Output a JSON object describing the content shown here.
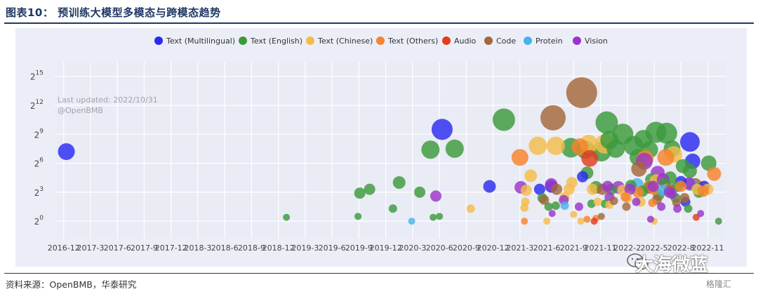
{
  "figure_title": "图表10： 预训练大模型多模态与跨模态趋势",
  "source_text": "资料来源：OpenBMB，华泰研究",
  "watermark_text": "大海微蓝",
  "badge_text": "格隆汇",
  "colors": {
    "header_rule": "#1f3864",
    "plot_background": "#e9ebf5",
    "grid": "#ffffff"
  },
  "chart_data": {
    "type": "scatter",
    "bubble": true,
    "title": "",
    "xlabel": "",
    "ylabel": "",
    "annotation": [
      "Last updated: 2022/10/31",
      "@OpenBMB"
    ],
    "y_scale": "log2",
    "ylim_exp": [
      -1.8,
      16.5
    ],
    "y_ticks": [
      {
        "base": "2",
        "exp": "0",
        "v": 0
      },
      {
        "base": "2",
        "exp": "3",
        "v": 3
      },
      {
        "base": "2",
        "exp": "6",
        "v": 6
      },
      {
        "base": "2",
        "exp": "9",
        "v": 9
      },
      {
        "base": "2",
        "exp": "12",
        "v": 12
      },
      {
        "base": "2",
        "exp": "15",
        "v": 15
      }
    ],
    "x_ticks": [
      "2016-12",
      "2017-3",
      "2017-6",
      "2017-9",
      "2017-12",
      "2018-3",
      "2018-6",
      "2018-9",
      "2018-12",
      "2019-3",
      "2019-6",
      "2019-9",
      "2019-12",
      "2020-3",
      "2020-6",
      "2020-9",
      "2020-12",
      "2021-3",
      "2021-6",
      "2021-9",
      "2021-11",
      "2022-2",
      "2022-5",
      "2022-8",
      "2022-11"
    ],
    "x_tick_positions": [
      0,
      3,
      6,
      9,
      12,
      15,
      18,
      21,
      24,
      27,
      30,
      33,
      36,
      39,
      42,
      45,
      48,
      51,
      54,
      57,
      60,
      63,
      66,
      69,
      72
    ],
    "legend_position": "top",
    "series": [
      {
        "name": "Text (Multilingual)",
        "color": "#2b2bf0",
        "points": [
          [
            0.3,
            7.2,
            12
          ],
          [
            42.3,
            9.5,
            15
          ],
          [
            47.6,
            3.6,
            9
          ],
          [
            53.2,
            3.3,
            8
          ],
          [
            54.5,
            3.6,
            9
          ],
          [
            58.0,
            4.6,
            8
          ],
          [
            70.0,
            8.2,
            14
          ],
          [
            70.3,
            6.2,
            11
          ],
          [
            69.0,
            4.1,
            8
          ],
          [
            69.5,
            2.0,
            7
          ],
          [
            71.6,
            3.6,
            8
          ]
        ]
      },
      {
        "name": "Text (English)",
        "color": "#3c9a3c",
        "points": [
          [
            24.9,
            0.4,
            5
          ],
          [
            32.9,
            0.5,
            5
          ],
          [
            33.1,
            2.9,
            8
          ],
          [
            34.2,
            3.3,
            8
          ],
          [
            36.8,
            1.3,
            6
          ],
          [
            37.5,
            4.0,
            9
          ],
          [
            39.8,
            3.0,
            8
          ],
          [
            41.3,
            0.4,
            5
          ],
          [
            42.0,
            0.5,
            5
          ],
          [
            41.0,
            7.4,
            13
          ],
          [
            43.7,
            7.5,
            13
          ],
          [
            49.2,
            10.5,
            16
          ],
          [
            53.5,
            2.4,
            7
          ],
          [
            54.2,
            1.5,
            6
          ],
          [
            55.0,
            1.6,
            6
          ],
          [
            56.7,
            7.6,
            14
          ],
          [
            58.3,
            7.4,
            13
          ],
          [
            58.5,
            5.0,
            9
          ],
          [
            59.0,
            1.8,
            6
          ],
          [
            60.1,
            7.2,
            14
          ],
          [
            60.7,
            10.2,
            16
          ],
          [
            61.0,
            8.4,
            13
          ],
          [
            61.7,
            7.5,
            13
          ],
          [
            62.5,
            9.0,
            15
          ],
          [
            63.7,
            7.8,
            14
          ],
          [
            64.2,
            6.6,
            12
          ],
          [
            64.8,
            8.5,
            13
          ],
          [
            65.5,
            7.4,
            12
          ],
          [
            66.2,
            9.2,
            15
          ],
          [
            67.4,
            9.1,
            15
          ],
          [
            68.0,
            7.5,
            12
          ],
          [
            67.8,
            4.5,
            9
          ],
          [
            68.6,
            3.6,
            8
          ],
          [
            69.2,
            5.7,
            10
          ],
          [
            70.0,
            5.2,
            10
          ],
          [
            71.0,
            3.0,
            8
          ],
          [
            72.1,
            6.0,
            11
          ],
          [
            73.2,
            0.0,
            5
          ],
          [
            59.5,
            3.5,
            9
          ],
          [
            61.2,
            3.3,
            8
          ],
          [
            63.4,
            3.7,
            8
          ],
          [
            64.7,
            3.1,
            8
          ],
          [
            65.7,
            4.3,
            9
          ],
          [
            66.5,
            2.7,
            8
          ],
          [
            67.2,
            3.9,
            8
          ],
          [
            68.4,
            2.4,
            7
          ],
          [
            69.8,
            1.3,
            6
          ],
          [
            60.5,
            1.8,
            6
          ]
        ]
      },
      {
        "name": "Text (Chinese)",
        "color": "#f5bc4a",
        "points": [
          [
            45.5,
            1.3,
            6
          ],
          [
            51.7,
            3.2,
            8
          ],
          [
            51.5,
            1.4,
            6
          ],
          [
            51.6,
            2.0,
            6
          ],
          [
            52.2,
            4.7,
            9
          ],
          [
            53.0,
            7.8,
            13
          ],
          [
            55.0,
            7.8,
            13
          ],
          [
            56.0,
            2.5,
            7
          ],
          [
            56.5,
            3.3,
            8
          ],
          [
            57.0,
            0.7,
            5
          ],
          [
            57.8,
            0.0,
            5
          ],
          [
            58.7,
            8.0,
            13
          ],
          [
            59.1,
            3.3,
            8
          ],
          [
            60.5,
            8.0,
            14
          ],
          [
            61.0,
            1.7,
            6
          ],
          [
            63.0,
            2.4,
            7
          ],
          [
            64.5,
            2.0,
            7
          ],
          [
            65.3,
            3.5,
            9
          ],
          [
            66.2,
            4.2,
            9
          ],
          [
            67.5,
            3.3,
            8
          ],
          [
            68.2,
            6.9,
            12
          ],
          [
            70.0,
            3.8,
            9
          ],
          [
            70.8,
            3.3,
            8
          ],
          [
            71.3,
            3.5,
            9
          ],
          [
            72.0,
            3.3,
            8
          ],
          [
            66.0,
            0.0,
            5
          ],
          [
            54.0,
            0.0,
            5
          ],
          [
            59.7,
            2.0,
            6
          ],
          [
            62.5,
            3.2,
            8
          ],
          [
            56.8,
            4.0,
            8
          ]
        ]
      },
      {
        "name": "Text (Others)",
        "color": "#f7832c",
        "points": [
          [
            51.0,
            6.6,
            12
          ],
          [
            57.7,
            7.7,
            12
          ],
          [
            58.5,
            0.2,
            5
          ],
          [
            59.5,
            0.3,
            5
          ],
          [
            62.8,
            2.5,
            7
          ],
          [
            64.2,
            3.0,
            8
          ],
          [
            65.0,
            6.5,
            12
          ],
          [
            66.0,
            3.3,
            8
          ],
          [
            67.3,
            6.6,
            12
          ],
          [
            69.0,
            3.6,
            8
          ],
          [
            71.5,
            3.1,
            8
          ],
          [
            72.7,
            4.9,
            10
          ],
          [
            51.5,
            0.0,
            5
          ],
          [
            65.8,
            1.9,
            6
          ]
        ]
      },
      {
        "name": "Audio",
        "color": "#e53b1e",
        "points": [
          [
            58.8,
            6.5,
            12
          ],
          [
            59.3,
            0.0,
            5
          ],
          [
            70.7,
            0.4,
            5
          ]
        ]
      },
      {
        "name": "Code",
        "color": "#a4673a",
        "points": [
          [
            54.7,
            10.7,
            18
          ],
          [
            57.9,
            13.3,
            22
          ],
          [
            53.7,
            2.2,
            7
          ],
          [
            55.1,
            3.3,
            8
          ],
          [
            60.2,
            3.3,
            8
          ],
          [
            61.5,
            2.1,
            6
          ],
          [
            62.9,
            1.5,
            6
          ],
          [
            64.3,
            5.4,
            11
          ],
          [
            65.5,
            3.5,
            9
          ],
          [
            66.3,
            2.2,
            7
          ],
          [
            67.7,
            3.3,
            8
          ],
          [
            68.5,
            1.9,
            6
          ],
          [
            69.4,
            2.4,
            7
          ],
          [
            70.6,
            3.8,
            9
          ],
          [
            60.1,
            0.5,
            5
          ]
        ]
      },
      {
        "name": "Protein",
        "color": "#4ab2ea",
        "points": [
          [
            38.9,
            0.0,
            5
          ],
          [
            56.0,
            1.6,
            6
          ],
          [
            64.1,
            3.8,
            9
          ],
          [
            67.0,
            3.2,
            8
          ],
          [
            70.1,
            3.8,
            9
          ]
        ]
      },
      {
        "name": "Vision",
        "color": "#9b34c9",
        "points": [
          [
            41.6,
            2.6,
            8
          ],
          [
            51.1,
            3.5,
            9
          ],
          [
            54.5,
            3.8,
            9
          ],
          [
            55.9,
            2.2,
            7
          ],
          [
            54.6,
            0.8,
            5
          ],
          [
            57.6,
            1.5,
            6
          ],
          [
            61.0,
            2.5,
            7
          ],
          [
            62.0,
            3.5,
            9
          ],
          [
            63.3,
            3.3,
            8
          ],
          [
            64.0,
            2.0,
            6
          ],
          [
            64.9,
            6.2,
            12
          ],
          [
            65.9,
            3.6,
            8
          ],
          [
            66.4,
            5.0,
            10
          ],
          [
            67.0,
            4.3,
            9
          ],
          [
            68.0,
            2.8,
            7
          ],
          [
            68.6,
            1.3,
            6
          ],
          [
            69.9,
            3.9,
            9
          ],
          [
            71.2,
            0.8,
            5
          ],
          [
            60.8,
            3.6,
            8
          ],
          [
            65.6,
            0.2,
            5
          ],
          [
            67.7,
            3.0,
            8
          ],
          [
            66.8,
            1.5,
            6
          ]
        ]
      }
    ]
  }
}
